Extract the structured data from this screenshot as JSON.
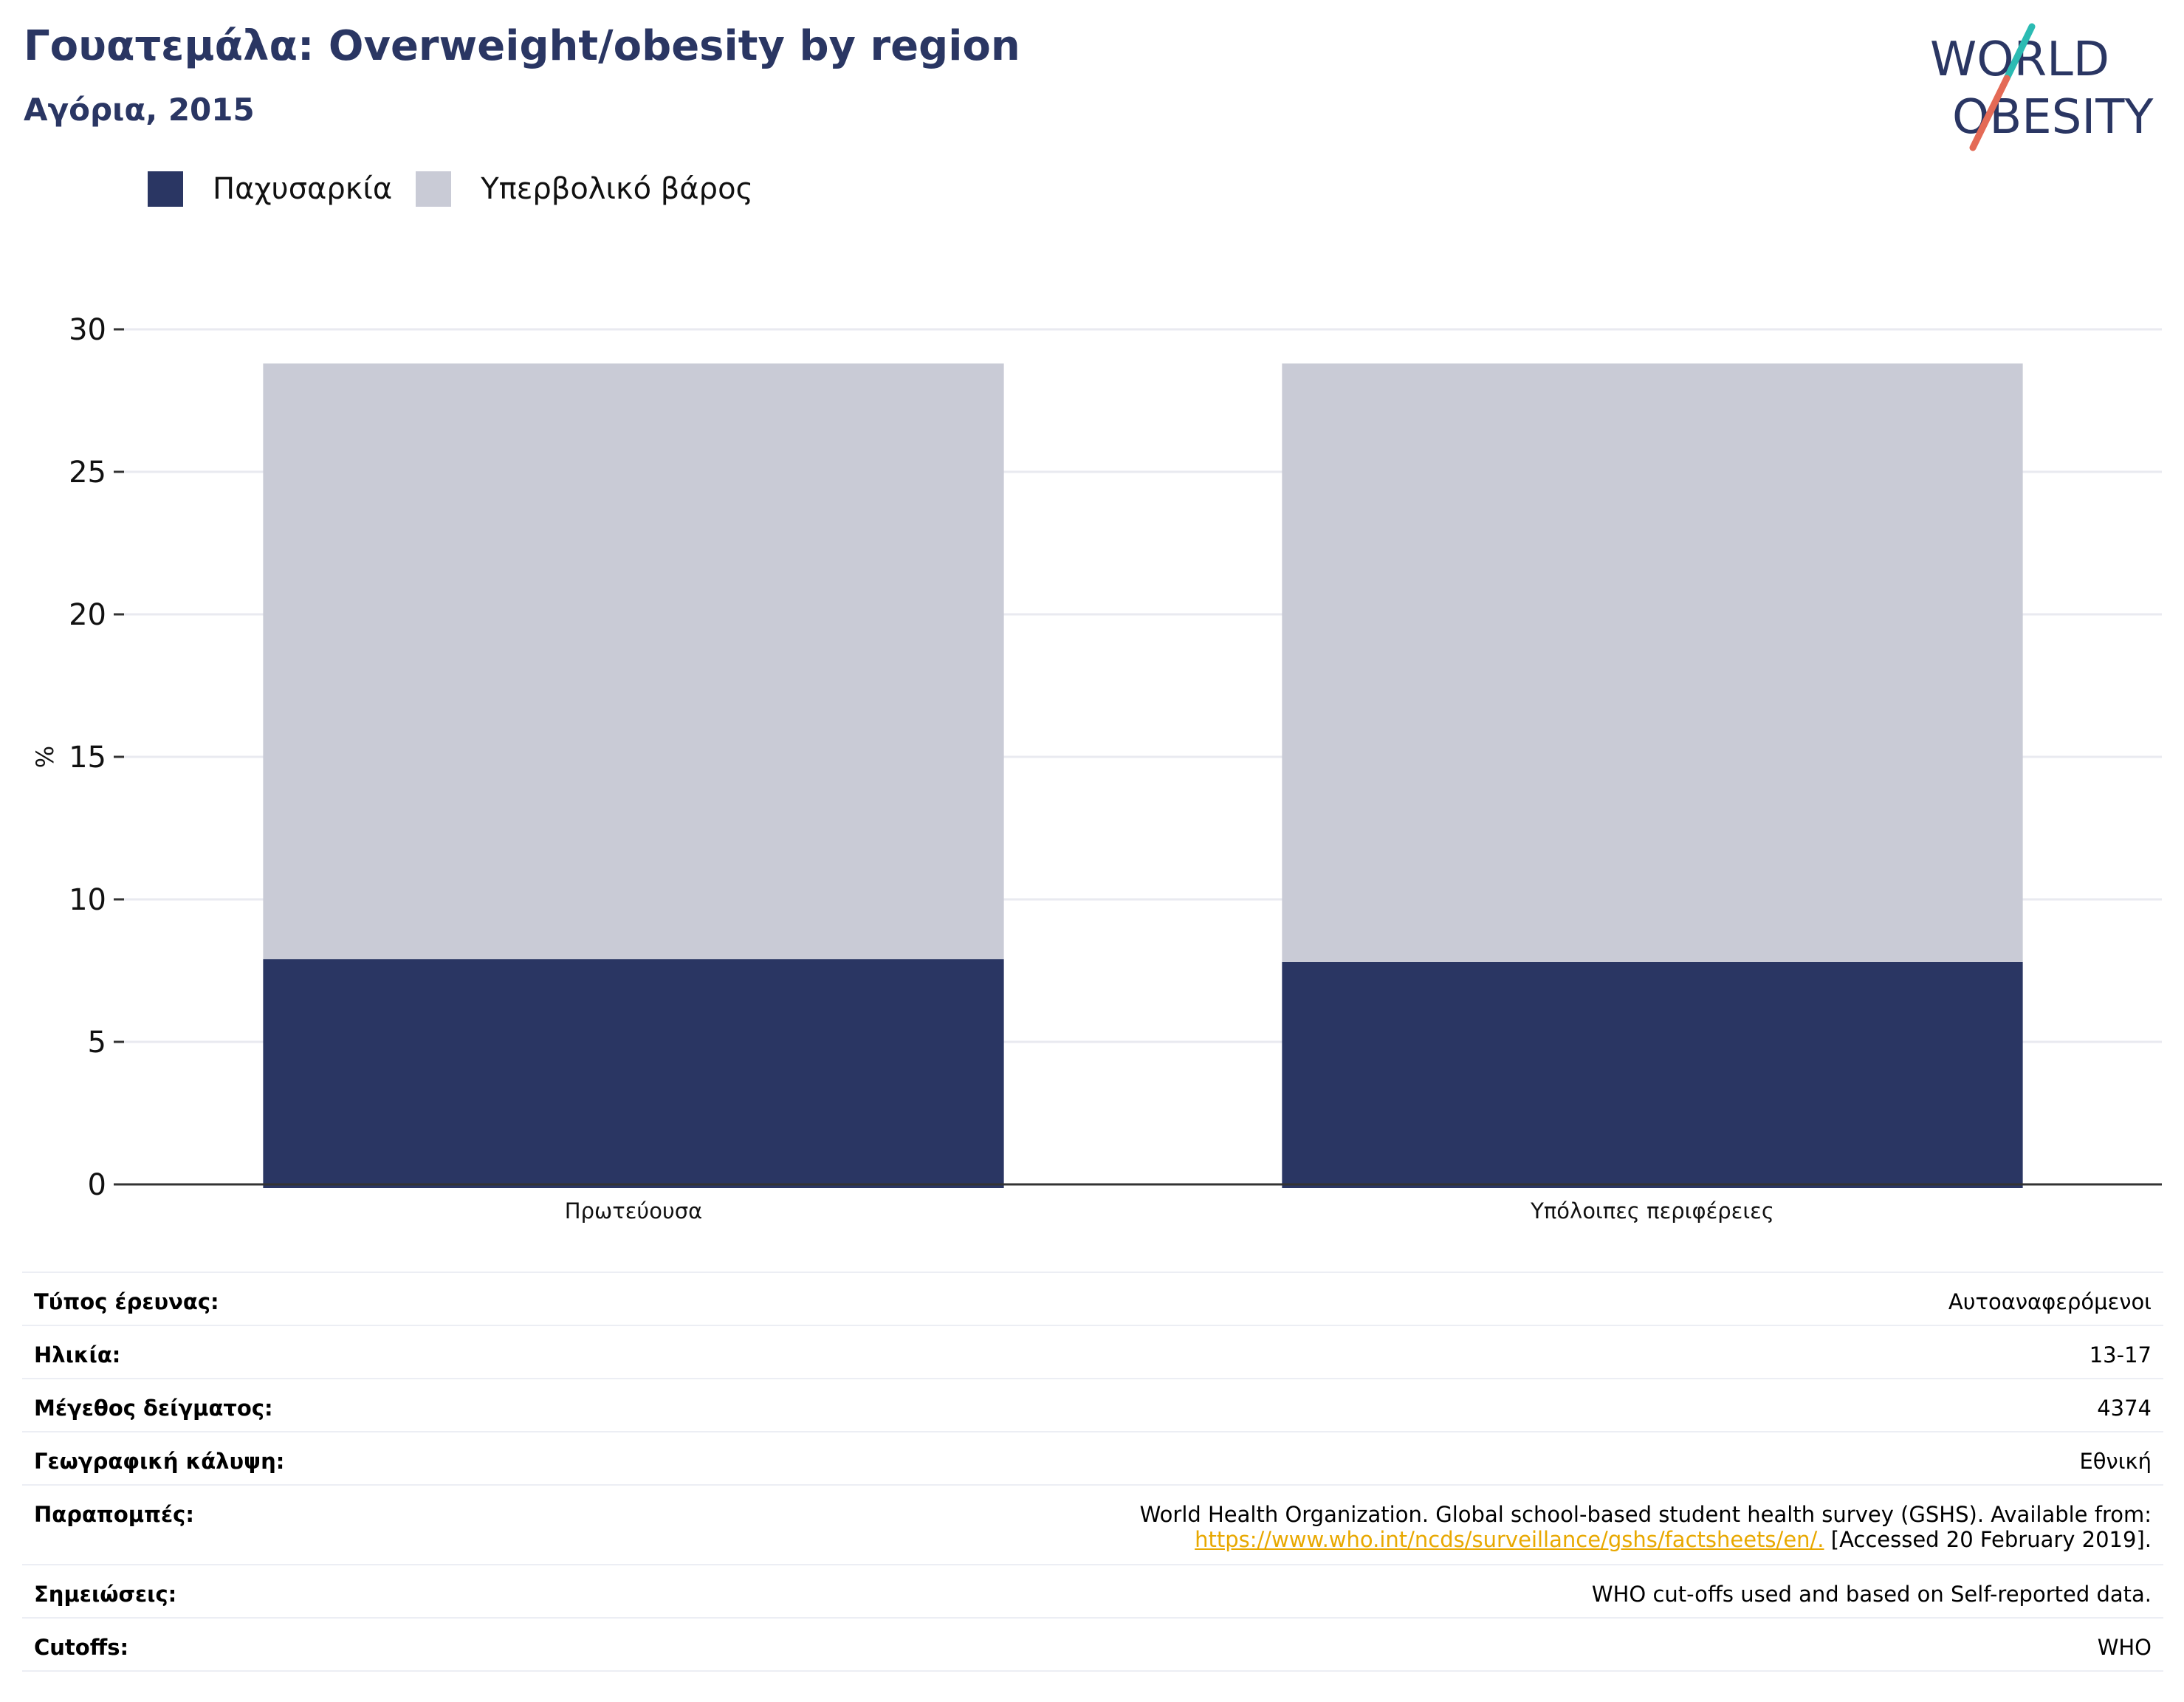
{
  "header": {
    "title": "Γουατεμάλα: Overweight/obesity by region",
    "subtitle": "Αγόρια, 2015"
  },
  "logo": {
    "line1": "WORLD",
    "line2": "OBESITY",
    "colors": {
      "text": "#2a3663",
      "teal": "#2bbbb3",
      "coral": "#e46a56"
    }
  },
  "colors": {
    "obesity": "#2a3663",
    "overweight": "#c9cbd6",
    "grid": "#e9eaf0",
    "axis": "#333333",
    "link": "#e8a800"
  },
  "chart_data": {
    "type": "bar",
    "stacked": true,
    "categories": [
      "Πρωτεύουσα",
      "Υπόλοιπες περιφέρειες"
    ],
    "series": [
      {
        "name": "Παχυσαρκία",
        "values": [
          7.9,
          7.8
        ]
      },
      {
        "name": "Υπερβολικό βάρος",
        "values": [
          20.9,
          21.0
        ]
      }
    ],
    "ylabel": "%",
    "xlabel": "",
    "ylim": [
      0,
      30
    ],
    "yticks": [
      0,
      5,
      10,
      15,
      20,
      25,
      30
    ],
    "grid": true,
    "legend_position": "top-left"
  },
  "info": {
    "rows": [
      {
        "label": "Τύπος έρευνας:",
        "value": "Αυτοαναφερόμενοι"
      },
      {
        "label": "Ηλικία:",
        "value": "13-17"
      },
      {
        "label": "Μέγεθος δείγματος:",
        "value": "4374"
      },
      {
        "label": "Γεωγραφική κάλυψη:",
        "value": "Εθνική"
      }
    ],
    "references": {
      "label": "Παραπομπές:",
      "text": "World Health Organization. Global school-based student health survey (GSHS). Available from:",
      "link": "https://www.who.int/ncds/surveillance/gshs/factsheets/en/.",
      "suffix": "[Accessed 20 February 2019]."
    },
    "notes": {
      "label": "Σημειώσεις:",
      "value": "WHO cut-offs used and based on Self-reported data."
    },
    "cutoffs": {
      "label": "Cutoffs:",
      "value": "WHO"
    }
  }
}
